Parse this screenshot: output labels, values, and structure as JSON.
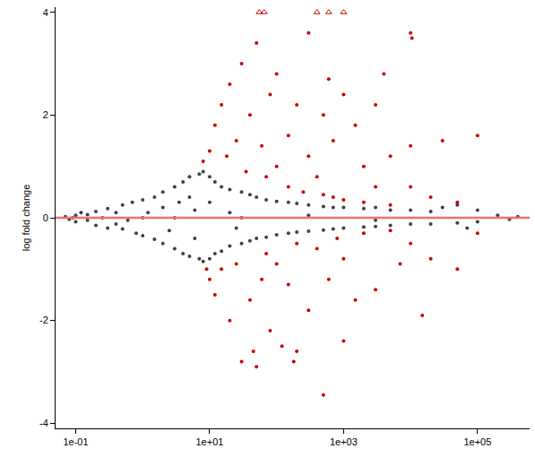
{
  "chart_data": {
    "type": "scatter",
    "log": "x",
    "grid": false,
    "ylabel": "log fold change",
    "xlim": [
      0.05,
      600000
    ],
    "xticks": [
      {
        "value": 0.1,
        "label": "1e-01"
      },
      {
        "value": 10,
        "label": "1e+01"
      },
      {
        "value": 1000,
        "label": "1e+03"
      },
      {
        "value": 100000,
        "label": "1e+05"
      }
    ],
    "ylim": [
      -4.1,
      4.1
    ],
    "yticks": [
      -4,
      -2,
      0,
      2,
      4
    ],
    "series": [
      {
        "color": "#404040",
        "marker": "circle",
        "x": [
          0.07,
          0.08,
          0.1,
          0.1,
          0.12,
          0.15,
          0.2,
          0.2,
          0.25,
          0.3,
          0.3,
          0.4,
          0.5,
          0.5,
          0.6,
          0.7,
          0.8,
          1,
          1,
          1.2,
          1.5,
          1.5,
          2,
          2,
          2,
          2.5,
          3,
          3,
          3.5,
          4,
          4,
          5,
          5,
          5,
          6,
          7,
          7,
          8,
          8,
          10,
          10,
          10,
          12,
          12,
          15,
          15,
          20,
          20,
          20,
          30,
          30,
          40,
          40,
          50,
          50,
          70,
          70,
          100,
          100,
          150,
          150,
          200,
          200,
          300,
          300,
          500,
          500,
          700,
          700,
          1000,
          1000,
          2000,
          2000,
          3000,
          3000,
          5000,
          5000,
          10000,
          10000,
          20000,
          20000,
          50000,
          50000,
          100000,
          100000,
          200000,
          300000,
          400000,
          30000,
          70000,
          1,
          3,
          30,
          300,
          3000,
          0.09,
          0.4,
          0.15,
          6,
          25
        ],
        "values": [
          0.02,
          -0.03,
          0.05,
          -0.08,
          0.1,
          -0.05,
          0.12,
          -0.15,
          0,
          0.18,
          -0.2,
          0.1,
          0.25,
          -0.22,
          -0.05,
          0.3,
          -0.3,
          0.35,
          -0.35,
          0.1,
          0.4,
          -0.42,
          0.5,
          -0.5,
          0.2,
          -0.25,
          0.6,
          -0.6,
          0.3,
          0.7,
          -0.7,
          0.8,
          -0.75,
          0.4,
          -0.4,
          0.85,
          -0.8,
          0.9,
          -0.85,
          0.8,
          -0.8,
          0.3,
          0.7,
          -0.7,
          0.6,
          -0.65,
          0.55,
          -0.55,
          0.1,
          0.5,
          -0.5,
          0.45,
          -0.45,
          0.4,
          -0.4,
          0.35,
          -0.38,
          0.32,
          -0.33,
          0.3,
          -0.3,
          0.28,
          -0.28,
          0.25,
          -0.26,
          0.22,
          -0.24,
          0.2,
          -0.22,
          0.2,
          -0.2,
          0.18,
          -0.18,
          0.2,
          -0.17,
          0.15,
          -0.15,
          0.15,
          -0.12,
          0.12,
          -0.12,
          0.25,
          -0.1,
          0.15,
          -0.08,
          0.05,
          -0.03,
          0.02,
          0.2,
          -0.2,
          0,
          0,
          0,
          0.05,
          -0.05,
          0,
          -0.12,
          0.06,
          0.15,
          -0.2
        ]
      },
      {
        "color": "#cc0000",
        "marker": "circle",
        "x": [
          8,
          9,
          10,
          10,
          12,
          12,
          15,
          15,
          18,
          20,
          20,
          25,
          25,
          30,
          30,
          35,
          40,
          40,
          50,
          50,
          60,
          60,
          70,
          70,
          80,
          80,
          100,
          100,
          100,
          120,
          150,
          150,
          150,
          200,
          200,
          200,
          250,
          300,
          300,
          300,
          400,
          400,
          500,
          500,
          500,
          600,
          700,
          700,
          800,
          1000,
          1000,
          1000,
          1000,
          1500,
          1500,
          2000,
          2000,
          2000,
          3000,
          3000,
          3000,
          5000,
          5000,
          5000,
          7000,
          10000,
          10000,
          10000,
          10000,
          10500,
          20000,
          20000,
          30000,
          50000,
          50000,
          100000,
          100000,
          15000,
          4000,
          600,
          45,
          180
        ],
        "values": [
          1.1,
          -1.0,
          1.3,
          -1.2,
          1.8,
          -1.5,
          2.2,
          -1.0,
          1.2,
          2.6,
          -2.0,
          1.5,
          -0.9,
          3.0,
          -2.8,
          0.9,
          2.0,
          -1.6,
          3.4,
          -2.9,
          1.4,
          -1.2,
          0.8,
          -0.7,
          2.4,
          -2.2,
          1.0,
          -0.9,
          2.8,
          -2.5,
          1.6,
          -1.3,
          0.6,
          2.2,
          -2.6,
          -0.5,
          0.5,
          3.6,
          -1.8,
          1.2,
          0.8,
          -0.6,
          2.0,
          -3.45,
          0.45,
          -1.2,
          1.5,
          0.4,
          -0.4,
          2.4,
          -2.4,
          0.35,
          -0.8,
          1.8,
          -1.6,
          0.3,
          -0.3,
          1.0,
          2.2,
          -1.4,
          0.6,
          0.25,
          -0.25,
          1.2,
          -0.9,
          0.6,
          -0.5,
          1.4,
          3.6,
          3.5,
          -0.8,
          0.4,
          1.5,
          -1.0,
          0.3,
          1.6,
          -0.3,
          -1.9,
          2.8,
          2.7,
          -2.6,
          -2.8
        ]
      },
      {
        "color": "#cc0000",
        "marker": "triangle",
        "x": [
          55,
          65,
          400,
          600,
          1000
        ],
        "values": [
          4,
          4,
          4,
          4,
          4
        ]
      },
      {
        "type": "line",
        "color": "#f07070",
        "x": [
          0.05,
          600000
        ],
        "values": [
          0,
          0
        ]
      }
    ]
  }
}
